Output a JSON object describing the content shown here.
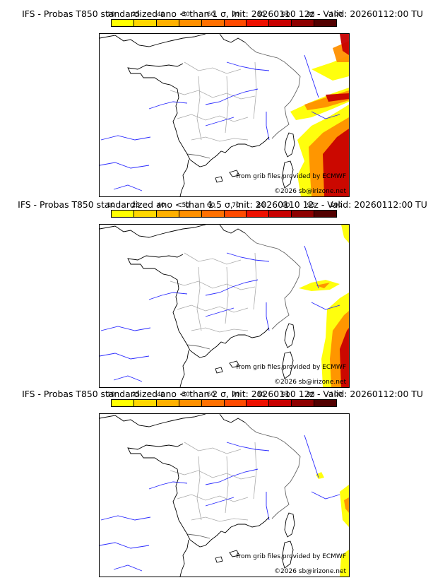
{
  "colorbar": {
    "ticks": [
      "10",
      "25",
      "40",
      "50",
      "60",
      "70",
      "80",
      "90",
      "95",
      "100"
    ],
    "colors": [
      "#ffff00",
      "#ffd700",
      "#ffb000",
      "#ff9000",
      "#ff7000",
      "#ff4a00",
      "#ee1000",
      "#c80000",
      "#8e0000",
      "#520000"
    ]
  },
  "credits": {
    "source": "from grib files provided by ECMWF",
    "copyright": "©2026 sb@irizone.net"
  },
  "panels": [
    {
      "title": "IFS - Probas T850  standardized ano < than 1 σ, Init: 20260110 12z - Valid: 20260112:00 TU",
      "probability_level": "high"
    },
    {
      "title": "IFS - Probas T850  standardized ano < than 1.5 σ, Init: 20260110 12z - Valid: 20260112:00 TU",
      "probability_level": "medium"
    },
    {
      "title": "IFS - Probas T850  standardized ano < than 2 σ, Init: 20260110 12z - Valid: 20260112:00 TU",
      "probability_level": "low"
    }
  ]
}
